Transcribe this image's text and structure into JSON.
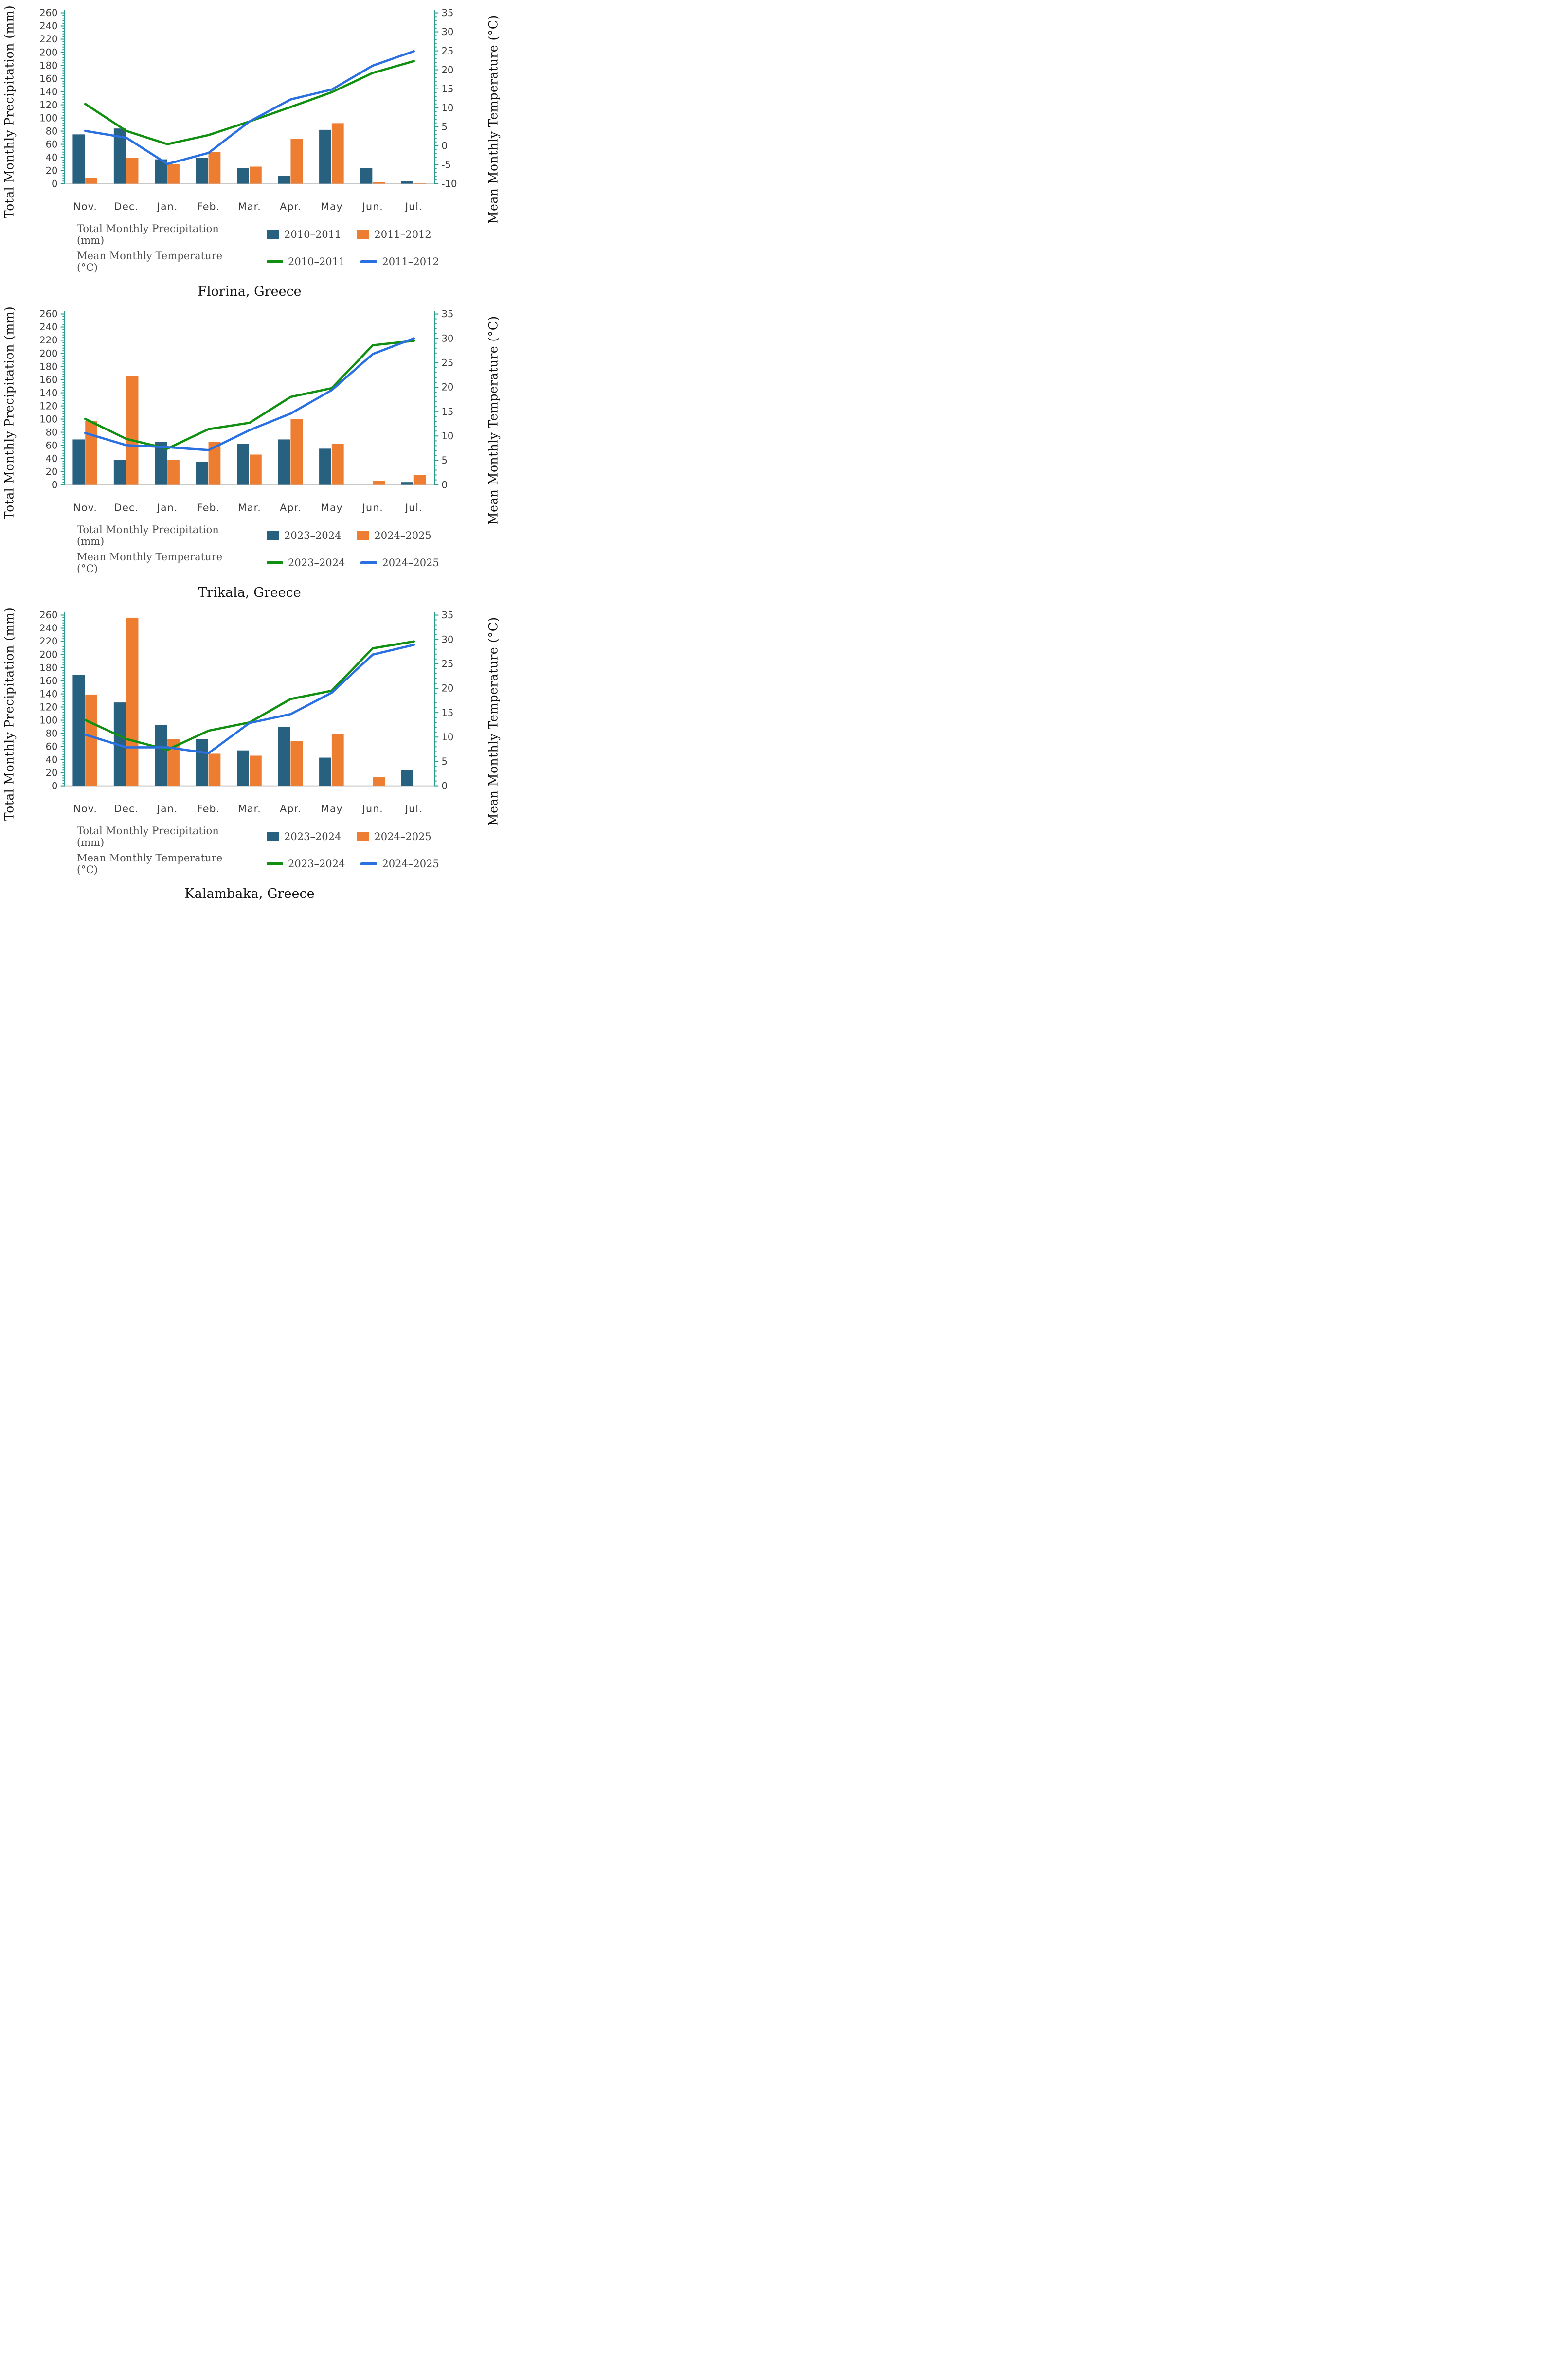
{
  "colors": {
    "axis": "#2a9a8f",
    "baseline": "#c8c8c8",
    "tick_text": "#3a3a3a",
    "bar_blue": "#28607f",
    "bar_orange": "#ed7d31",
    "line_green": "#118f11",
    "line_blue": "#2a70e0"
  },
  "chart_data": [
    {
      "type": "bar+line combo",
      "title": "Florina, Greece",
      "grid": false,
      "legend_position": "below",
      "categories": [
        "Nov.",
        "Dec.",
        "Jan.",
        "Feb.",
        "Mar.",
        "Apr.",
        "May",
        "Jun.",
        "Jul."
      ],
      "bar_axis": {
        "label": "Total Monthly Precipitation (mm)",
        "min": 0,
        "max": 260,
        "step": 20,
        "minor_step": 4
      },
      "line_axis": {
        "label": "Mean Monthly Temperature (°C)",
        "min": -10,
        "max": 35,
        "step": 5,
        "minor_step": 1
      },
      "legend": {
        "bars_label": "Total Monthly Precipitation  (mm)",
        "lines_label": "Mean Monthly Temperature (°C)"
      },
      "bar_series": [
        {
          "name": "2010–2011",
          "color": "#28607f",
          "values": [
            75,
            84,
            37,
            39,
            24,
            12,
            82,
            24,
            4
          ]
        },
        {
          "name": "2011–2012",
          "color": "#ed7d31",
          "values": [
            9,
            39,
            30,
            48,
            26,
            68,
            92,
            2,
            1
          ]
        }
      ],
      "line_series": [
        {
          "name": "2010–2011",
          "color": "#118f11",
          "values": [
            11,
            3.9,
            0.4,
            2.8,
            6.4,
            10.2,
            14.1,
            19.2,
            22.3
          ]
        },
        {
          "name": "2011–2012",
          "color": "#2a70e0",
          "values": [
            3.9,
            2.1,
            -4.8,
            -1.9,
            6.4,
            12.2,
            14.8,
            21.1,
            24.9
          ]
        }
      ]
    },
    {
      "type": "bar+line combo",
      "title": "Trikala, Greece",
      "grid": false,
      "legend_position": "below",
      "categories": [
        "Nov.",
        "Dec.",
        "Jan.",
        "Feb.",
        "Mar.",
        "Apr.",
        "May",
        "Jun.",
        "Jul."
      ],
      "bar_axis": {
        "label": "Total Monthly Precipitation (mm)",
        "min": 0,
        "max": 260,
        "step": 20,
        "minor_step": 4
      },
      "line_axis": {
        "label": "Mean Monthly Temperature (°C)",
        "min": 0,
        "max": 35,
        "step": 5,
        "minor_step": 1
      },
      "legend": {
        "bars_label": "Total Monthly Precipitation (mm)",
        "lines_label": "Mean Monthly Temperature (°C)"
      },
      "bar_series": [
        {
          "name": "2023–2024",
          "color": "#28607f",
          "values": [
            69,
            38,
            65,
            35,
            62,
            69,
            55,
            0,
            4
          ]
        },
        {
          "name": "2024–2025",
          "color": "#ed7d31",
          "values": [
            97,
            166,
            38,
            65,
            46,
            100,
            62,
            6,
            15
          ]
        }
      ],
      "line_series": [
        {
          "name": "2023–2024",
          "color": "#118f11",
          "values": [
            13.5,
            9.4,
            7.4,
            11.4,
            12.7,
            18.0,
            19.8,
            28.6,
            29.5
          ]
        },
        {
          "name": "2024–2025",
          "color": "#2a70e0",
          "values": [
            10.6,
            8.1,
            7.7,
            7.1,
            11.2,
            14.6,
            19.4,
            26.8,
            30.0
          ]
        }
      ]
    },
    {
      "type": "bar+line combo",
      "title": "Kalambaka, Greece",
      "grid": false,
      "legend_position": "below",
      "categories": [
        "Nov.",
        "Dec.",
        "Jan.",
        "Feb.",
        "Mar.",
        "Apr.",
        "May",
        "Jun.",
        "Jul."
      ],
      "bar_axis": {
        "label": "Total Monthly Precipitation (mm)",
        "min": 0,
        "max": 260,
        "step": 20,
        "minor_step": 4
      },
      "line_axis": {
        "label": "Mean Monthly Temperature (°C)",
        "min": 0,
        "max": 35,
        "step": 5,
        "minor_step": 1
      },
      "legend": {
        "bars_label": "Total Monthly Precipitation  (mm)",
        "lines_label": "Mean Monthly Temperature (°C)"
      },
      "bar_series": [
        {
          "name": "2023–2024",
          "color": "#28607f",
          "values": [
            169,
            127,
            93,
            71,
            54,
            90,
            43,
            0,
            24
          ]
        },
        {
          "name": "2024–2025",
          "color": "#ed7d31",
          "values": [
            139,
            256,
            71,
            49,
            46,
            68,
            79,
            13,
            0
          ]
        }
      ],
      "line_series": [
        {
          "name": "2023–2024",
          "color": "#118f11",
          "values": [
            13.5,
            9.6,
            7.4,
            11.3,
            13.0,
            17.8,
            19.5,
            28.2,
            29.6
          ]
        },
        {
          "name": "2024–2025",
          "color": "#2a70e0",
          "values": [
            10.5,
            7.9,
            7.9,
            6.7,
            12.9,
            14.7,
            19.1,
            26.9,
            28.9
          ]
        }
      ]
    }
  ]
}
